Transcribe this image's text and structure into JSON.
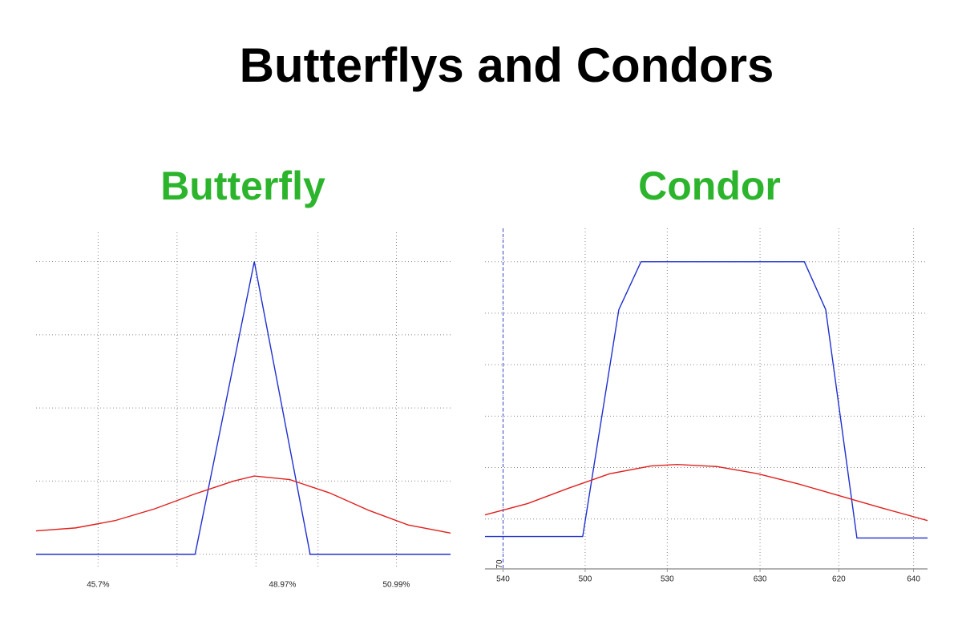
{
  "title": "Butterflys and Condors",
  "chart_data": [
    {
      "type": "line",
      "title": "Butterfly",
      "title_color": "#2cb52c",
      "xlim": [
        44.6,
        51.95
      ],
      "ylim": [
        -0.2,
        4.4
      ],
      "xticks": [
        {
          "value": 45.7,
          "label": "45.7%"
        },
        {
          "value": 48.97,
          "label": "48.97%"
        },
        {
          "value": 50.99,
          "label": "50.99%"
        }
      ],
      "xgrid": [
        45.7,
        47.1,
        48.5,
        49.6,
        50.99
      ],
      "ygrid": [
        0,
        1,
        2,
        3,
        4
      ],
      "grid": true,
      "axis_line": false,
      "series": [
        {
          "color": "#1f2fd0",
          "x": [
            44.6,
            47.42,
            48.47,
            49.46,
            51.95
          ],
          "values": [
            0,
            0,
            4,
            0,
            0
          ]
        },
        {
          "color": "#e0201c",
          "x": [
            44.6,
            45.3,
            46.0,
            46.7,
            47.4,
            48.1,
            48.47,
            49.1,
            49.8,
            50.5,
            51.2,
            51.95
          ],
          "values": [
            0.32,
            0.36,
            0.46,
            0.62,
            0.82,
            1.0,
            1.07,
            1.02,
            0.84,
            0.6,
            0.4,
            0.29
          ]
        }
      ]
    },
    {
      "type": "line",
      "title": "Condor",
      "title_color": "#2cb52c",
      "xlim": [
        -0.22,
        5.17
      ],
      "ylim": [
        -0.97,
        5.65
      ],
      "xticks": [
        {
          "value": 0,
          "label": "540"
        },
        {
          "value": 1,
          "label": "500"
        },
        {
          "value": 2,
          "label": "530"
        },
        {
          "value": 3.13,
          "label": "630"
        },
        {
          "value": 4.09,
          "label": "620"
        },
        {
          "value": 5,
          "label": "640"
        }
      ],
      "xgrid": [
        0,
        1,
        2,
        3.13,
        4.09,
        5
      ],
      "ygrid": [
        0,
        1,
        2,
        3,
        4,
        5
      ],
      "grid": true,
      "axis_line": true,
      "marker_line": {
        "x": 0,
        "label": "70",
        "color": "#3344cc"
      },
      "series": [
        {
          "color": "#1f2fd0",
          "x": [
            -0.22,
            0.97,
            1.41,
            1.68,
            3.67,
            3.93,
            4.31,
            5.17
          ],
          "values": [
            -0.34,
            -0.34,
            4.07,
            5.0,
            5.0,
            4.07,
            -0.37,
            -0.37
          ]
        },
        {
          "color": "#e0201c",
          "x": [
            -0.22,
            0.3,
            0.8,
            1.3,
            1.8,
            2.12,
            2.6,
            3.1,
            3.6,
            4.1,
            4.6,
            5.17
          ],
          "values": [
            0.08,
            0.3,
            0.6,
            0.88,
            1.03,
            1.06,
            1.02,
            0.88,
            0.68,
            0.45,
            0.22,
            -0.03
          ]
        }
      ]
    }
  ]
}
